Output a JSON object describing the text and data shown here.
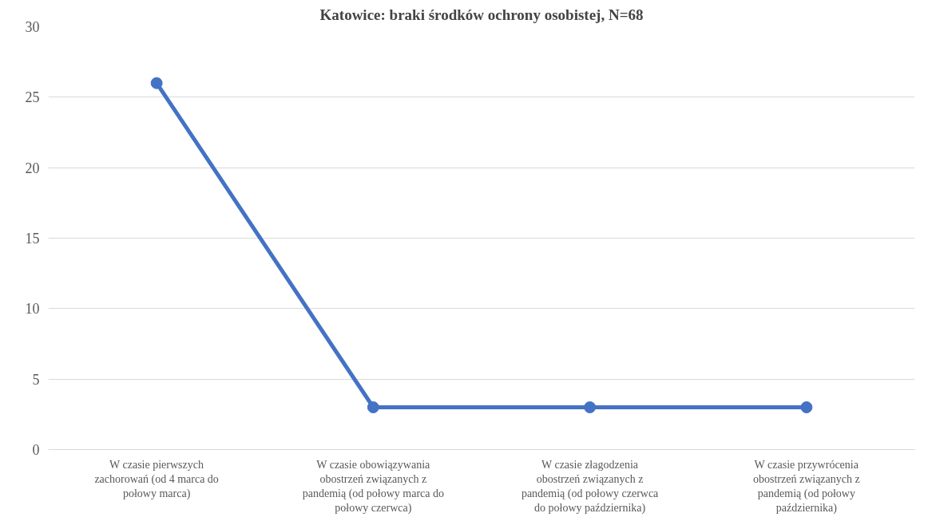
{
  "chart_data": {
    "type": "line",
    "title": "Katowice: braki środków ochrony osobistej, N=68",
    "categories": [
      "W czasie pierwszych zachorowań (od 4 marca do połowy marca)",
      "W czasie obowiązywania obostrzeń związanych z pandemią (od połowy marca do połowy czerwca)",
      "W czasie złagodzenia obostrzeń związanych z pandemią (od połowy czerwca do połowy października)",
      "W czasie przywrócenia obostrzeń związanych z pandemią (od połowy października)"
    ],
    "series": [
      {
        "color": "#4472c4",
        "values": [
          26,
          3,
          3,
          3
        ]
      }
    ],
    "ylim": [
      0,
      30
    ],
    "yticks": [
      0,
      5,
      10,
      15,
      20,
      25,
      30
    ],
    "grid": "y",
    "marker": "circle",
    "line_style": "solid"
  }
}
